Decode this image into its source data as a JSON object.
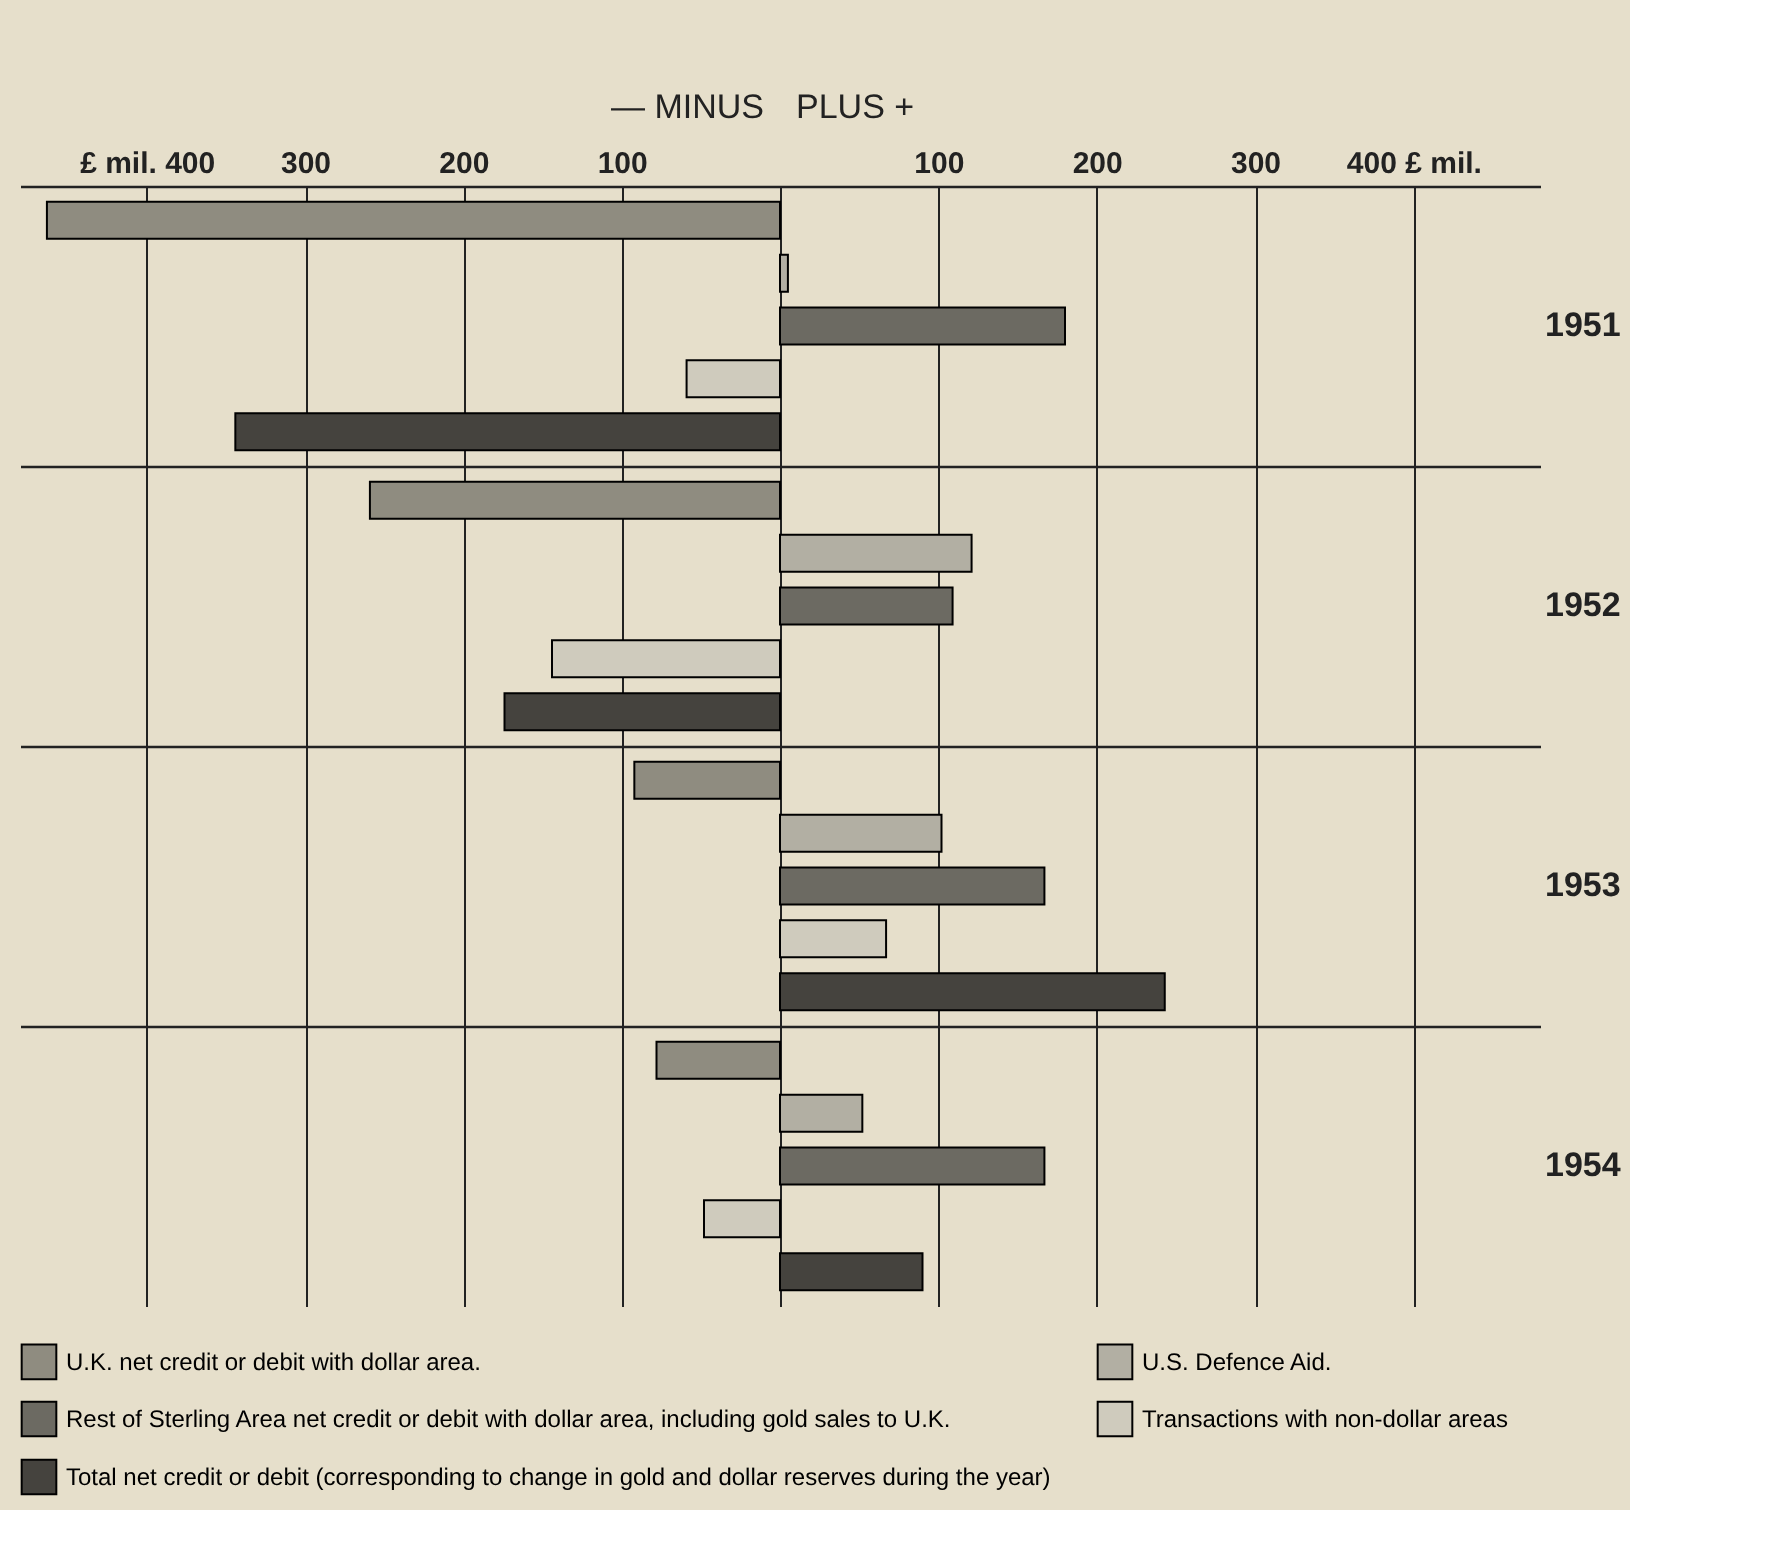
{
  "chart_data": {
    "type": "bar",
    "orientation": "horizontal",
    "categories": [
      "1951",
      "1952",
      "1953",
      "1954"
    ],
    "series": [
      {
        "name": "U.K. net credit or debit with dollar area.",
        "color": "#8f8c80",
        "values": [
          -463,
          -259,
          -92,
          -78
        ]
      },
      {
        "name": "U.S. Defence Aid.",
        "color": "#b2afa3",
        "values": [
          5,
          121,
          102,
          52
        ]
      },
      {
        "name": "Rest of Sterling Area net credit or debit with dollar area, including gold sales to U.K.",
        "color": "#6c6a62",
        "values": [
          180,
          109,
          167,
          167
        ]
      },
      {
        "name": "Transactions with non-dollar areas",
        "color": "#cfcbbd",
        "values": [
          -59,
          -144,
          67,
          -48
        ]
      },
      {
        "name": "Total net credit or debit (corresponding to change in gold and dollar reserves during the year)",
        "color": "#45433e",
        "values": [
          -344,
          -174,
          243,
          90
        ]
      }
    ],
    "xlim": [
      -480,
      480
    ],
    "xticks": [
      {
        "value": -400,
        "label": "£ mil. 400"
      },
      {
        "value": -300,
        "label": "300"
      },
      {
        "value": -200,
        "label": "200"
      },
      {
        "value": -100,
        "label": "100"
      },
      {
        "value": 0,
        "label": null
      },
      100,
      200,
      300,
      {
        "value": 400,
        "label": "400 £ mil."
      }
    ],
    "annotations": [
      "— MINUS",
      "PLUS +"
    ],
    "grid": true,
    "legend": "bottom"
  }
}
